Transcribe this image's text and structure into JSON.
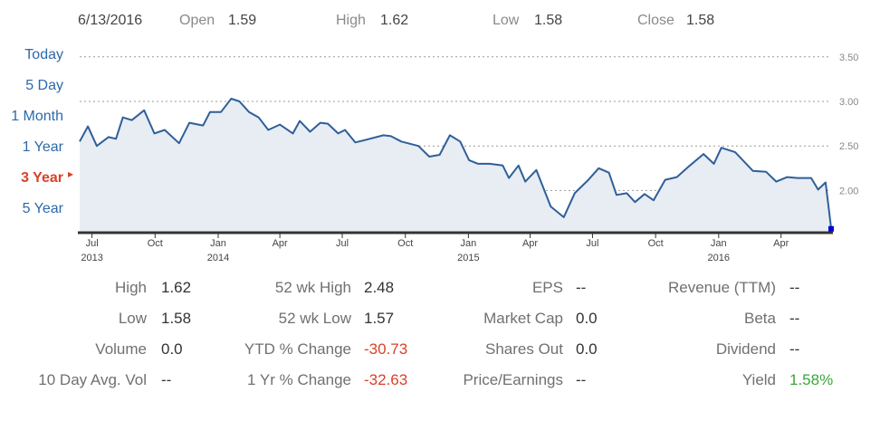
{
  "header": {
    "date": "6/13/2016",
    "open_label": "Open",
    "open_value": "1.59",
    "high_label": "High",
    "high_value": "1.62",
    "low_label": "Low",
    "low_value": "1.58",
    "close_label": "Close",
    "close_value": "1.58"
  },
  "ranges": [
    {
      "label": "Today",
      "active": false
    },
    {
      "label": "5 Day",
      "active": false
    },
    {
      "label": "1 Month",
      "active": false
    },
    {
      "label": "1 Year",
      "active": false
    },
    {
      "label": "3 Year",
      "active": true
    },
    {
      "label": "5 Year",
      "active": false
    }
  ],
  "colors": {
    "line": "#2f5f99",
    "area": "#e7edf3",
    "grid": "#999999",
    "baseline": "#333333",
    "marker": "#0000dd",
    "negative": "#d9412a",
    "positive": "#3aa63a",
    "link": "#2c6aa8"
  },
  "chart_data": {
    "type": "area",
    "y_ticks": [
      "3.50",
      "3.00",
      "2.50",
      "2.00"
    ],
    "ylim": [
      1.5,
      3.55
    ],
    "grid": true,
    "x_ticks": [
      {
        "month": "Jul",
        "year": "2013",
        "date": "2013-07-01"
      },
      {
        "month": "Oct",
        "year": "",
        "date": "2013-10-01"
      },
      {
        "month": "Jan",
        "year": "2014",
        "date": "2014-01-01"
      },
      {
        "month": "Apr",
        "year": "",
        "date": "2014-04-01"
      },
      {
        "month": "Jul",
        "year": "",
        "date": "2014-07-01"
      },
      {
        "month": "Oct",
        "year": "",
        "date": "2014-10-01"
      },
      {
        "month": "Jan",
        "year": "2015",
        "date": "2015-01-01"
      },
      {
        "month": "Apr",
        "year": "",
        "date": "2015-04-01"
      },
      {
        "month": "Jul",
        "year": "",
        "date": "2015-07-01"
      },
      {
        "month": "Oct",
        "year": "",
        "date": "2015-10-01"
      },
      {
        "month": "Jan",
        "year": "2016",
        "date": "2016-01-01"
      },
      {
        "month": "Apr",
        "year": "",
        "date": "2016-04-01"
      }
    ],
    "points": [
      [
        "2013-06-13",
        2.55
      ],
      [
        "2013-06-25",
        2.72
      ],
      [
        "2013-07-08",
        2.5
      ],
      [
        "2013-07-25",
        2.6
      ],
      [
        "2013-08-05",
        2.58
      ],
      [
        "2013-08-15",
        2.82
      ],
      [
        "2013-08-28",
        2.79
      ],
      [
        "2013-09-15",
        2.9
      ],
      [
        "2013-09-30",
        2.64
      ],
      [
        "2013-10-15",
        2.68
      ],
      [
        "2013-11-05",
        2.53
      ],
      [
        "2013-11-20",
        2.76
      ],
      [
        "2013-12-10",
        2.73
      ],
      [
        "2013-12-20",
        2.88
      ],
      [
        "2014-01-05",
        2.88
      ],
      [
        "2014-01-20",
        3.03
      ],
      [
        "2014-02-01",
        3.0
      ],
      [
        "2014-02-15",
        2.88
      ],
      [
        "2014-03-01",
        2.82
      ],
      [
        "2014-03-15",
        2.68
      ],
      [
        "2014-04-01",
        2.74
      ],
      [
        "2014-04-20",
        2.64
      ],
      [
        "2014-04-30",
        2.78
      ],
      [
        "2014-05-15",
        2.66
      ],
      [
        "2014-05-30",
        2.76
      ],
      [
        "2014-06-10",
        2.75
      ],
      [
        "2014-06-25",
        2.64
      ],
      [
        "2014-07-05",
        2.68
      ],
      [
        "2014-07-20",
        2.54
      ],
      [
        "2014-08-05",
        2.57
      ],
      [
        "2014-08-30",
        2.62
      ],
      [
        "2014-09-10",
        2.61
      ],
      [
        "2014-09-25",
        2.55
      ],
      [
        "2014-10-20",
        2.5
      ],
      [
        "2014-11-05",
        2.38
      ],
      [
        "2014-11-20",
        2.4
      ],
      [
        "2014-12-05",
        2.62
      ],
      [
        "2014-12-20",
        2.55
      ],
      [
        "2015-01-02",
        2.34
      ],
      [
        "2015-01-15",
        2.3
      ],
      [
        "2015-02-01",
        2.3
      ],
      [
        "2015-02-20",
        2.28
      ],
      [
        "2015-03-01",
        2.14
      ],
      [
        "2015-03-15",
        2.28
      ],
      [
        "2015-03-25",
        2.1
      ],
      [
        "2015-04-10",
        2.23
      ],
      [
        "2015-05-01",
        1.82
      ],
      [
        "2015-05-20",
        1.7
      ],
      [
        "2015-06-05",
        1.97
      ],
      [
        "2015-06-25",
        2.12
      ],
      [
        "2015-07-10",
        2.25
      ],
      [
        "2015-07-25",
        2.2
      ],
      [
        "2015-08-05",
        1.95
      ],
      [
        "2015-08-20",
        1.97
      ],
      [
        "2015-09-01",
        1.87
      ],
      [
        "2015-09-15",
        1.96
      ],
      [
        "2015-09-28",
        1.89
      ],
      [
        "2015-10-15",
        2.12
      ],
      [
        "2015-11-01",
        2.15
      ],
      [
        "2015-11-20",
        2.28
      ],
      [
        "2015-12-10",
        2.41
      ],
      [
        "2015-12-25",
        2.3
      ],
      [
        "2016-01-05",
        2.48
      ],
      [
        "2016-01-25",
        2.43
      ],
      [
        "2016-02-20",
        2.22
      ],
      [
        "2016-03-10",
        2.21
      ],
      [
        "2016-03-25",
        2.1
      ],
      [
        "2016-04-10",
        2.15
      ],
      [
        "2016-04-25",
        2.14
      ],
      [
        "2016-05-15",
        2.14
      ],
      [
        "2016-05-25",
        2.01
      ],
      [
        "2016-06-05",
        2.09
      ]
    ],
    "point_dates_note": "",
    "x_points": []
  },
  "stats": {
    "col1": [
      {
        "label": "High",
        "value": "1.62",
        "tone": ""
      },
      {
        "label": "Low",
        "value": "1.58",
        "tone": ""
      },
      {
        "label": "Volume",
        "value": "0.0",
        "tone": ""
      },
      {
        "label": "10 Day Avg. Vol",
        "value": "--",
        "tone": ""
      }
    ],
    "col2": [
      {
        "label": "52 wk High",
        "value": "2.48",
        "tone": ""
      },
      {
        "label": "52 wk Low",
        "value": "1.57",
        "tone": ""
      },
      {
        "label": "YTD % Change",
        "value": "-30.73",
        "tone": "neg"
      },
      {
        "label": "1 Yr % Change",
        "value": "-32.63",
        "tone": "neg"
      }
    ],
    "col3": [
      {
        "label": "EPS",
        "value": "--",
        "tone": ""
      },
      {
        "label": "Market Cap",
        "value": "0.0",
        "tone": ""
      },
      {
        "label": "Shares Out",
        "value": "0.0",
        "tone": ""
      },
      {
        "label": "Price/Earnings",
        "value": "--",
        "tone": ""
      }
    ],
    "col4": [
      {
        "label": "Revenue (TTM)",
        "value": "--",
        "tone": ""
      },
      {
        "label": "Beta",
        "value": "--",
        "tone": ""
      },
      {
        "label": "Dividend",
        "value": "--",
        "tone": ""
      },
      {
        "label": "Yield",
        "value": "1.58%",
        "tone": "pos"
      }
    ]
  }
}
